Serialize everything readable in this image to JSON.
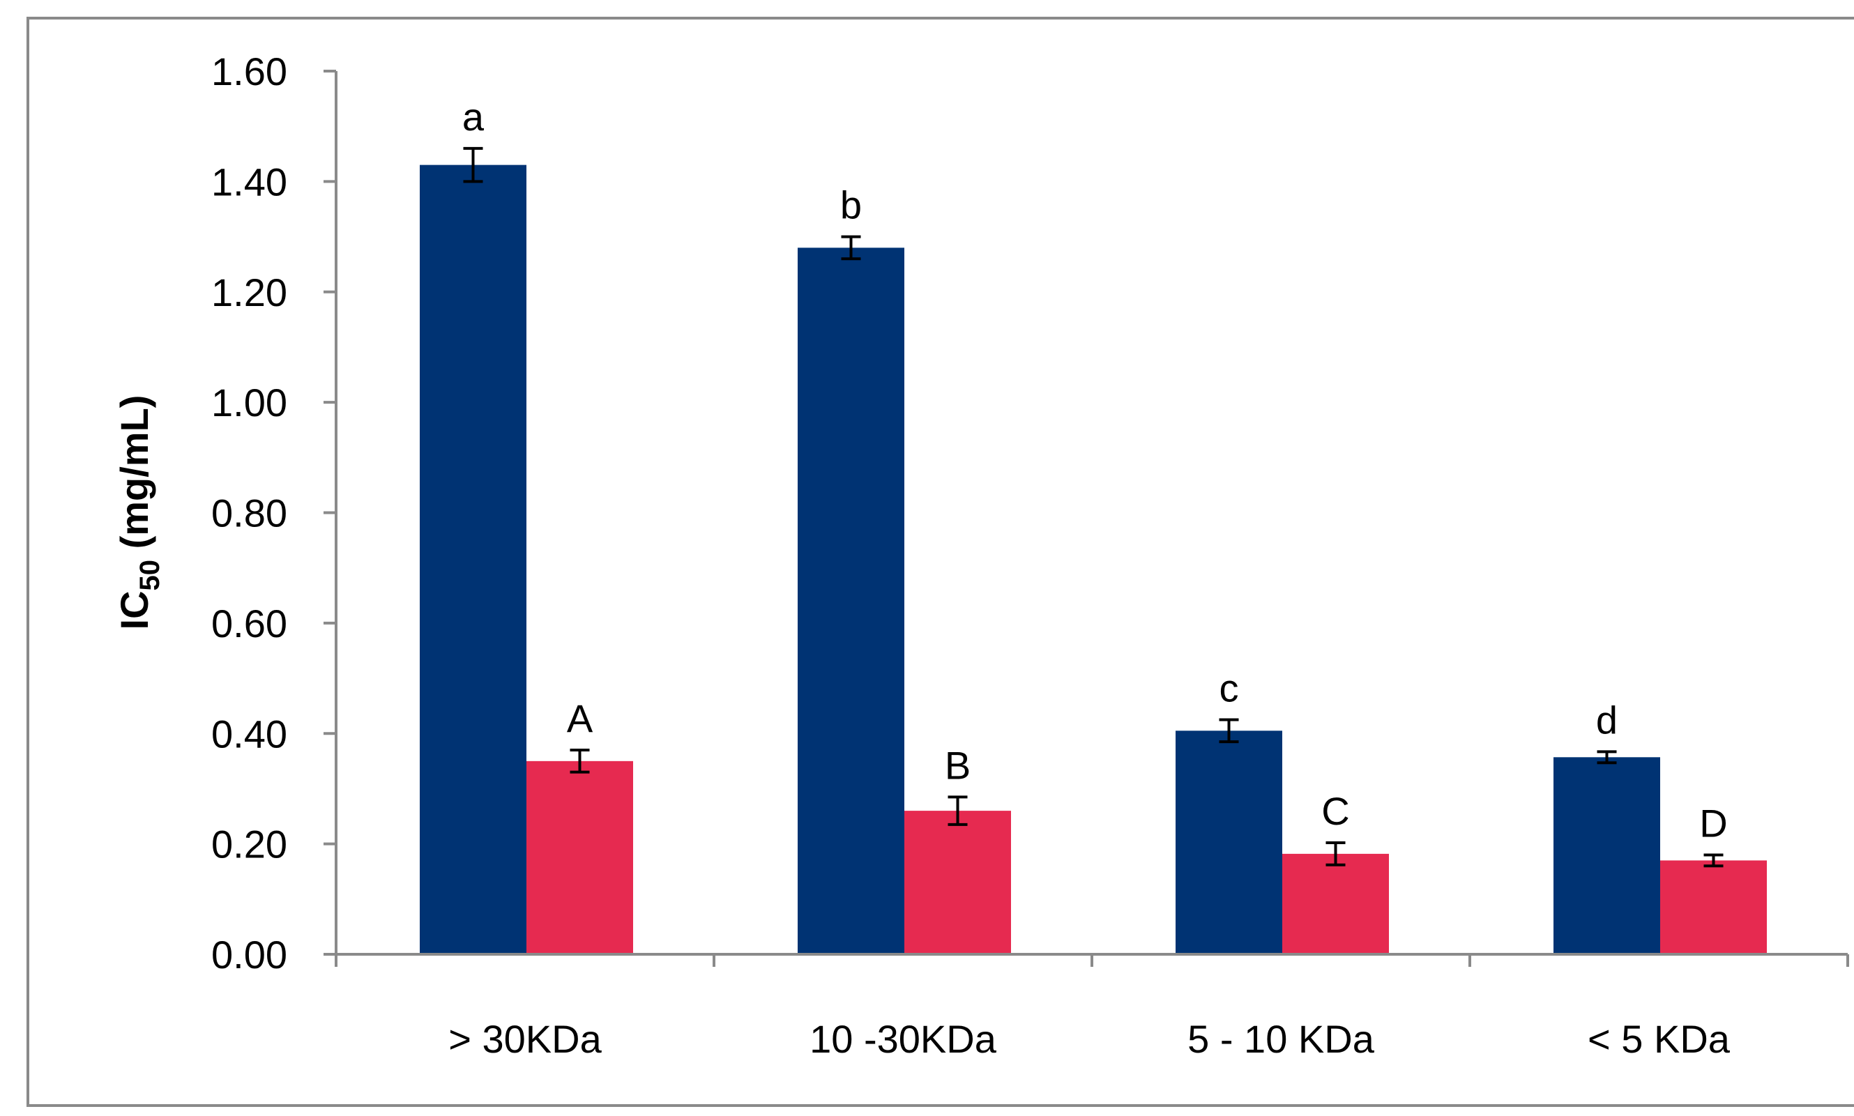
{
  "chart_data": {
    "type": "bar",
    "title": "",
    "xlabel": "",
    "ylabel": "IC",
    "ylabel_subscript": "50",
    "ylabel_suffix": " (mg/mL)",
    "ylim": [
      0,
      1.6
    ],
    "yticks": [
      "0.00",
      "0.20",
      "0.40",
      "0.60",
      "0.80",
      "1.00",
      "1.20",
      "1.40",
      "1.60"
    ],
    "grid": false,
    "legend": "none",
    "categories": [
      "> 30KDa",
      "10 -30KDa",
      "5 - 10 KDa",
      "< 5 KDa"
    ],
    "series": [
      {
        "color": "#003373",
        "values": [
          1.43,
          1.28,
          0.405,
          0.357
        ],
        "errors": [
          0.03,
          0.02,
          0.02,
          0.01
        ],
        "labels": [
          "a",
          "b",
          "c",
          "d"
        ]
      },
      {
        "color": "#E62A50",
        "values": [
          0.35,
          0.26,
          0.182,
          0.17
        ],
        "errors": [
          0.02,
          0.025,
          0.02,
          0.01
        ],
        "labels": [
          "A",
          "B",
          "C",
          "D"
        ]
      }
    ]
  }
}
